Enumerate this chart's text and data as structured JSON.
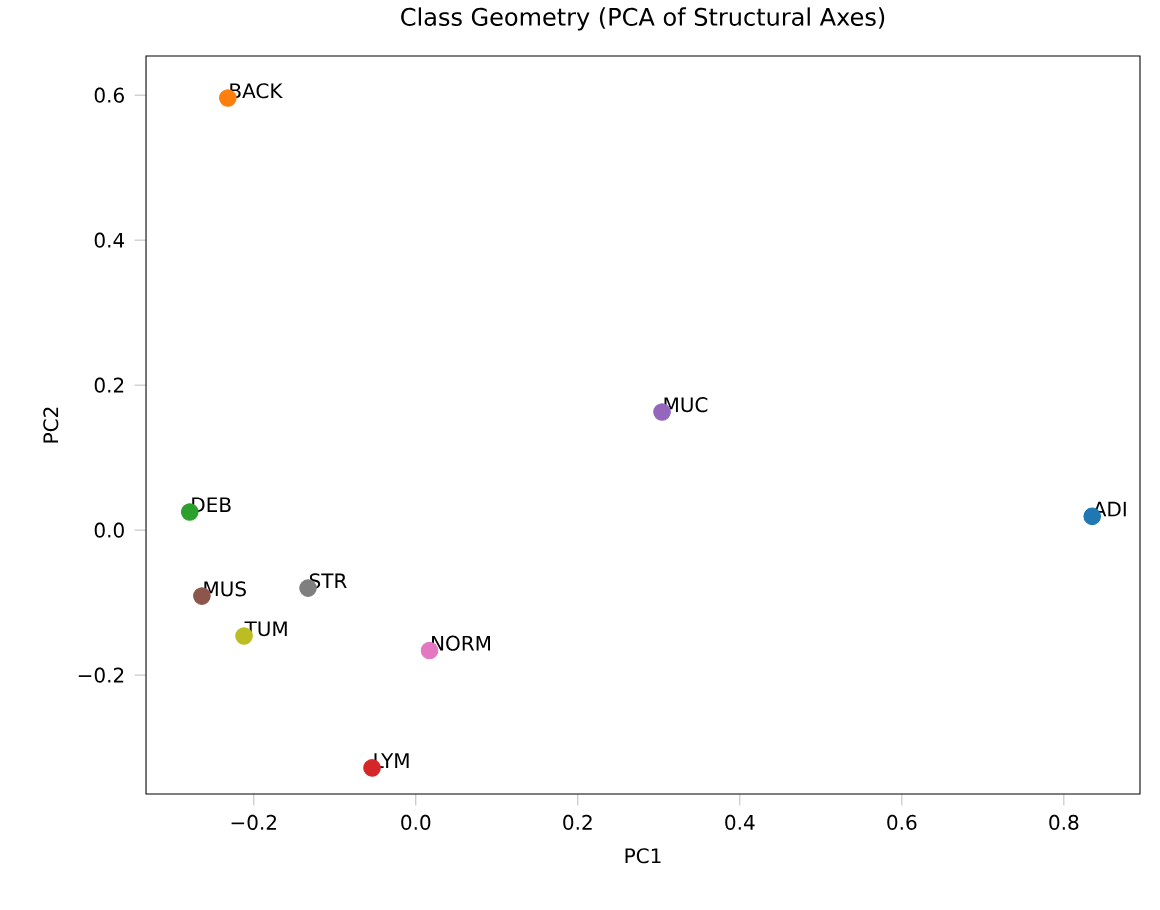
{
  "chart_data": {
    "type": "scatter",
    "title": "Class Geometry (PCA of Structural Axes)",
    "xlabel": "PC1",
    "ylabel": "PC2",
    "marker": "circle",
    "xlim": [
      -0.333,
      0.894
    ],
    "ylim": [
      -0.364,
      0.654
    ],
    "xticks": [
      {
        "value": -0.2,
        "label": "−0.2"
      },
      {
        "value": 0,
        "label": "0.0"
      },
      {
        "value": 0.2,
        "label": "0.2"
      },
      {
        "value": 0.4,
        "label": "0.4"
      },
      {
        "value": 0.6,
        "label": "0.6"
      },
      {
        "value": 0.8,
        "label": "0.8"
      }
    ],
    "yticks": [
      {
        "value": -0.2,
        "label": "−0.2"
      },
      {
        "value": 0,
        "label": "0.0"
      },
      {
        "value": 0.2,
        "label": "0.2"
      },
      {
        "value": 0.4,
        "label": "0.4"
      },
      {
        "value": 0.6,
        "label": "0.6"
      }
    ],
    "series": [
      {
        "name": "ADI",
        "color": "#1f77b4",
        "x": [
          0.835
        ],
        "values": [
          0.019
        ]
      },
      {
        "name": "BACK",
        "color": "#ff7f0e",
        "x": [
          -0.232
        ],
        "values": [
          0.596
        ]
      },
      {
        "name": "DEB",
        "color": "#2ca02c",
        "x": [
          -0.279
        ],
        "values": [
          0.025
        ]
      },
      {
        "name": "LYM",
        "color": "#d62728",
        "x": [
          -0.054
        ],
        "values": [
          -0.328
        ]
      },
      {
        "name": "MUC",
        "color": "#9467bd",
        "x": [
          0.304
        ],
        "values": [
          0.163
        ]
      },
      {
        "name": "MUS",
        "color": "#8c564b",
        "x": [
          -0.264
        ],
        "values": [
          -0.091
        ]
      },
      {
        "name": "NORM",
        "color": "#e377c2",
        "x": [
          0.017
        ],
        "values": [
          -0.166
        ]
      },
      {
        "name": "STR",
        "color": "#7f7f7f",
        "x": [
          -0.133
        ],
        "values": [
          -0.08
        ]
      },
      {
        "name": "TUM",
        "color": "#bcbd22",
        "x": [
          -0.212
        ],
        "values": [
          -0.146
        ]
      }
    ]
  }
}
